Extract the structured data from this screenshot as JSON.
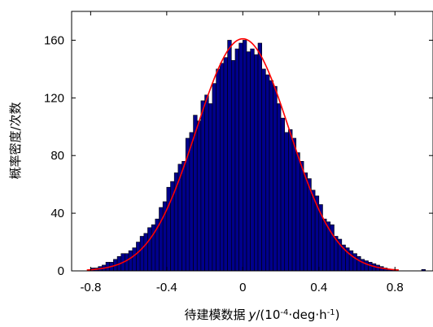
{
  "chart_data": {
    "type": "bar",
    "title": "",
    "xlabel_main": "待建模数据",
    "xlabel_var": "y",
    "xlabel_unit_open": "/(10",
    "xlabel_exp1": "-4",
    "xlabel_unit_mid": "·deg·h",
    "xlabel_exp2": "-1",
    "xlabel_unit_close": ")",
    "ylabel": "概率密度/次数",
    "xlim": [
      -0.9,
      1.0
    ],
    "ylim": [
      0,
      180
    ],
    "x_ticks": [
      -0.8,
      -0.4,
      0,
      0.4,
      0.8
    ],
    "x_tick_labels": [
      "-0.8",
      "-0.4",
      "0",
      "0.4",
      "0.8"
    ],
    "y_ticks": [
      0,
      40,
      80,
      120,
      160
    ],
    "y_tick_labels": [
      "0",
      "40",
      "80",
      "120",
      "160"
    ],
    "grid": false,
    "histogram": {
      "bin_width": 0.02,
      "bin_centers": [
        -0.79,
        -0.77,
        -0.75,
        -0.73,
        -0.71,
        -0.69,
        -0.67,
        -0.65,
        -0.63,
        -0.61,
        -0.59,
        -0.57,
        -0.55,
        -0.53,
        -0.51,
        -0.49,
        -0.47,
        -0.45,
        -0.43,
        -0.41,
        -0.39,
        -0.37,
        -0.35,
        -0.33,
        -0.31,
        -0.29,
        -0.27,
        -0.25,
        -0.23,
        -0.21,
        -0.19,
        -0.17,
        -0.15,
        -0.13,
        -0.11,
        -0.09,
        -0.07,
        -0.05,
        -0.03,
        -0.01,
        0.01,
        0.03,
        0.05,
        0.07,
        0.09,
        0.11,
        0.13,
        0.15,
        0.17,
        0.19,
        0.21,
        0.23,
        0.25,
        0.27,
        0.29,
        0.31,
        0.33,
        0.35,
        0.37,
        0.39,
        0.41,
        0.43,
        0.45,
        0.47,
        0.49,
        0.51,
        0.53,
        0.55,
        0.57,
        0.59,
        0.61,
        0.63,
        0.65,
        0.67,
        0.69,
        0.71,
        0.73,
        0.75,
        0.77,
        0.79,
        0.81,
        0.83,
        0.85,
        0.87,
        0.89,
        0.91,
        0.93,
        0.95,
        0.97,
        0.99
      ],
      "counts": [
        2,
        2,
        3,
        4,
        6,
        6,
        8,
        10,
        12,
        12,
        14,
        16,
        20,
        24,
        26,
        30,
        32,
        36,
        44,
        48,
        58,
        62,
        68,
        74,
        76,
        92,
        96,
        108,
        104,
        118,
        122,
        116,
        130,
        140,
        144,
        148,
        160,
        146,
        154,
        158,
        160,
        152,
        154,
        150,
        158,
        140,
        136,
        132,
        128,
        116,
        106,
        96,
        98,
        92,
        82,
        76,
        68,
        64,
        56,
        52,
        46,
        36,
        34,
        32,
        24,
        22,
        18,
        16,
        14,
        12,
        10,
        8,
        7,
        6,
        5,
        4,
        3,
        2,
        1,
        1,
        0,
        0,
        0,
        0,
        0,
        0,
        0,
        1,
        0,
        0
      ]
    },
    "series": [
      {
        "name": "",
        "type": "histogram",
        "color": "#00008b"
      },
      {
        "name": "",
        "type": "fitted-curve",
        "color": "#ff0000",
        "amplitude": 161,
        "mean": 0.0,
        "sigma": 0.245
      }
    ]
  }
}
